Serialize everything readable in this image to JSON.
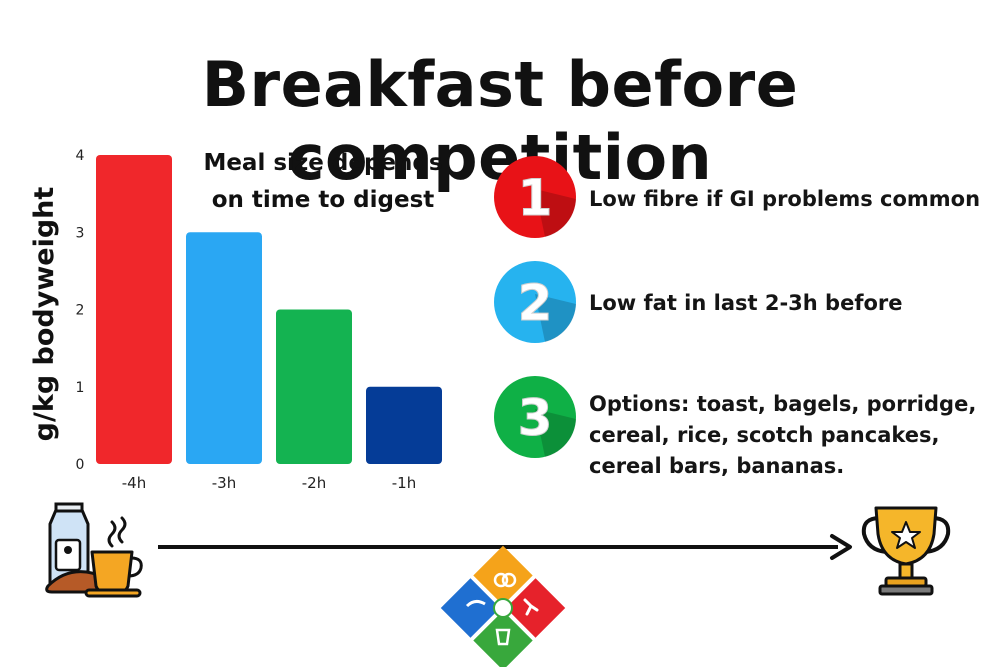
{
  "title": "Breakfast before competition",
  "chart_data": {
    "type": "bar",
    "categories": [
      "-4h",
      "-3h",
      "-2h",
      "-1h"
    ],
    "values": [
      4,
      3,
      2,
      1
    ],
    "colors": [
      "#f0272b",
      "#2aa7f3",
      "#14b351",
      "#053c97"
    ],
    "ylabel": "g/kg bodyweight",
    "ylim": [
      0,
      4
    ],
    "yticks": [
      0,
      1,
      2,
      3,
      4
    ],
    "annotation": [
      "Meal size depends",
      "on time to digest"
    ],
    "grid": false,
    "legend": "none"
  },
  "tips": [
    {
      "number": "1",
      "color": "#e81217",
      "lines": [
        "Low fibre if GI problems common"
      ]
    },
    {
      "number": "2",
      "color": "#26b3ef",
      "lines": [
        "Low fat in last 2-3h before"
      ]
    },
    {
      "number": "3",
      "color": "#0fb046",
      "lines": [
        "Options: toast, bagels, porridge,",
        "cereal, rice, scotch pancakes,",
        "cereal bars, bananas."
      ]
    }
  ],
  "icons": {
    "start": "breakfast-icon",
    "end": "trophy-icon",
    "arrow": "timeline-arrow",
    "logo": "sports-logo"
  }
}
